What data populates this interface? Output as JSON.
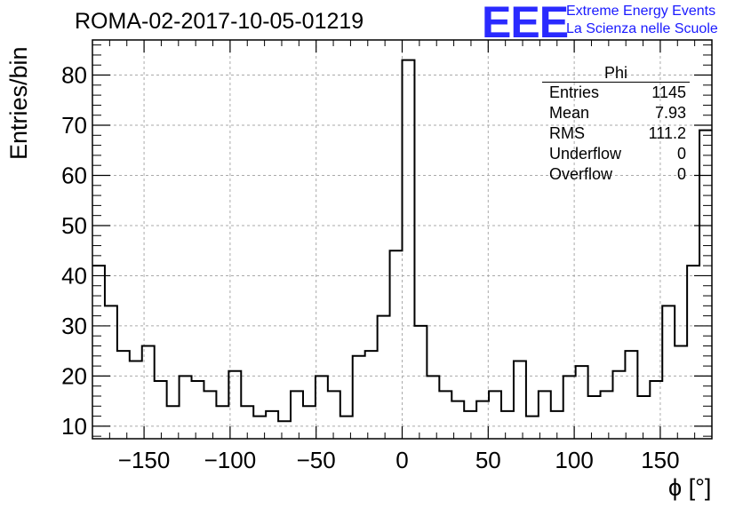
{
  "chart_data": {
    "type": "bar",
    "title": "ROMA-02-2017-10-05-01219",
    "xlabel": "ϕ [°]",
    "ylabel": "Entries/bin",
    "xlim": [
      -180,
      180
    ],
    "ylim": [
      7.5,
      87
    ],
    "bin_width": 7.2,
    "x_ticks": [
      "−150",
      "−100",
      "−50",
      "0",
      "50",
      "100",
      "150"
    ],
    "x_tick_values": [
      -150,
      -100,
      -50,
      0,
      50,
      100,
      150
    ],
    "y_ticks": [
      "10",
      "20",
      "30",
      "40",
      "50",
      "60",
      "70",
      "80"
    ],
    "y_tick_values": [
      10,
      20,
      30,
      40,
      50,
      60,
      70,
      80
    ],
    "grid": true,
    "values": [
      42,
      34,
      25,
      23,
      26,
      19,
      14,
      20,
      19,
      17,
      14,
      21,
      14,
      12,
      13,
      11,
      17,
      14,
      20,
      17,
      12,
      24,
      25,
      32,
      45,
      83,
      30,
      20,
      17,
      15,
      13,
      15,
      17,
      13,
      23,
      12,
      17,
      13,
      20,
      22,
      16,
      17,
      21,
      25,
      16,
      19,
      34,
      26,
      42,
      69
    ],
    "line_color": "#000000",
    "grid_color": "#aaaaaa"
  },
  "stats_box": {
    "title": "Phi",
    "rows": [
      {
        "label": "Entries",
        "value": "1145"
      },
      {
        "label": "Mean",
        "value": "7.93"
      },
      {
        "label": "RMS",
        "value": "111.2"
      },
      {
        "label": "Underflow",
        "value": "0"
      },
      {
        "label": "Overflow",
        "value": "0"
      }
    ]
  },
  "logo": {
    "mark": "EEE",
    "line1": "Extreme Energy Events",
    "line2": "La Scienza nelle Scuole",
    "color": "#2a2aff"
  }
}
